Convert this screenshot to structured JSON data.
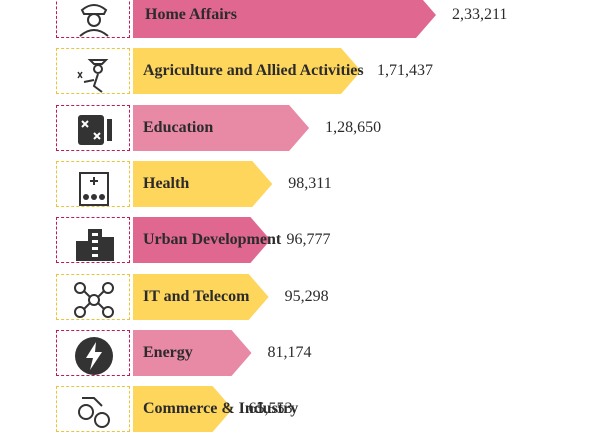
{
  "chart_data": {
    "type": "bar",
    "orientation": "horizontal",
    "categories": [
      "Home Affairs",
      "Agriculture and Allied Activities",
      "Education",
      "Health",
      "Urban Development",
      "IT and Telecom",
      "Energy",
      "Commerce & Industry"
    ],
    "values": [
      233211,
      171437,
      128650,
      98311,
      96777,
      95298,
      81174,
      65553
    ],
    "value_labels": [
      "2,33,211",
      "1,71,437",
      "1,28,650",
      "98,311",
      "96,777",
      "95,298",
      "81,174",
      "65,553"
    ],
    "icons": [
      "police-officer-icon",
      "farmer-icon",
      "blueprint-icon",
      "hospital-icon",
      "buildings-icon",
      "network-icon",
      "lightning-icon",
      "factory-gears-icon"
    ],
    "colors": [
      "#e06890",
      "#fed65c",
      "#e889a6",
      "#fed65c",
      "#e06890",
      "#fed65c",
      "#e889a6",
      "#fed65c"
    ],
    "title": "",
    "xlabel": "",
    "ylabel": ""
  }
}
